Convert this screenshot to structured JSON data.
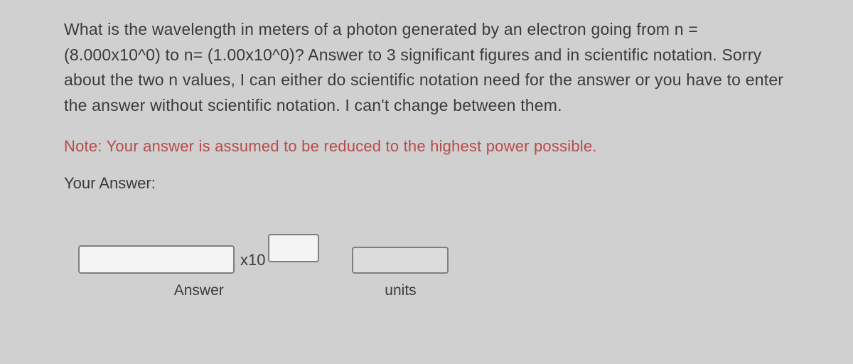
{
  "question": {
    "text": "What is the wavelength in meters of a photon generated by an electron going from n = (8.000x10^0) to n= (1.00x10^0)?  Answer to 3 significant figures and in scientific notation.  Sorry about the two n values, I can either do scientific notation need for the answer or you have to enter the answer without scientific notation.  I can't change between them."
  },
  "note": {
    "prefix": "Note: ",
    "text": "Your answer is assumed to be reduced to the highest power possible."
  },
  "answer": {
    "your_answer_label": "Your Answer:",
    "x10_label": "x10",
    "answer_sublabel": "Answer",
    "units_sublabel": "units",
    "mantissa_value": "",
    "exponent_value": "",
    "units_value": ""
  },
  "colors": {
    "background": "#cfd0cf",
    "body_text": "#3a3b3a",
    "note_text": "#b84b4b",
    "input_bg": "#f3f4f3",
    "units_input_bg": "#dbdcdb",
    "input_border": "#7e7f7e"
  },
  "typography": {
    "question_fontsize": 23,
    "note_fontsize": 22,
    "label_fontsize": 22,
    "sublabel_fontsize": 21
  }
}
